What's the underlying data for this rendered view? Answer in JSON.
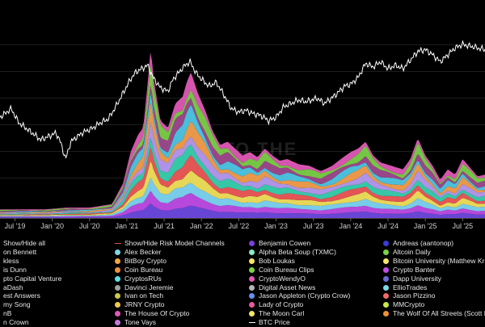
{
  "chart_data": {
    "type": "area",
    "watermark": "INTO THE",
    "x_ticks": [
      "Jul '19",
      "Jan '20",
      "Jul '20",
      "Jan '21",
      "Jul '21",
      "Jan '22",
      "Jul '22",
      "Jan '23",
      "Jul '23",
      "Jan '24",
      "Jul '24",
      "Jan '25",
      "Jul '25"
    ],
    "x_range": [
      2019.3,
      2025.8
    ],
    "y_range_views": [
      0,
      1
    ],
    "btc_price_norm": [
      [
        2019.3,
        0.58
      ],
      [
        2019.45,
        0.63
      ],
      [
        2019.55,
        0.55
      ],
      [
        2019.7,
        0.5
      ],
      [
        2019.85,
        0.45
      ],
      [
        2019.95,
        0.47
      ],
      [
        2020.05,
        0.49
      ],
      [
        2020.1,
        0.45
      ],
      [
        2020.18,
        0.34
      ],
      [
        2020.25,
        0.44
      ],
      [
        2020.4,
        0.49
      ],
      [
        2020.55,
        0.52
      ],
      [
        2020.65,
        0.55
      ],
      [
        2020.75,
        0.57
      ],
      [
        2020.85,
        0.64
      ],
      [
        2020.95,
        0.72
      ],
      [
        2021.05,
        0.8
      ],
      [
        2021.12,
        0.84
      ],
      [
        2021.2,
        0.86
      ],
      [
        2021.28,
        0.88
      ],
      [
        2021.35,
        0.81
      ],
      [
        2021.45,
        0.75
      ],
      [
        2021.55,
        0.73
      ],
      [
        2021.62,
        0.8
      ],
      [
        2021.7,
        0.84
      ],
      [
        2021.78,
        0.88
      ],
      [
        2021.85,
        0.9
      ],
      [
        2021.92,
        0.84
      ],
      [
        2022.0,
        0.8
      ],
      [
        2022.1,
        0.76
      ],
      [
        2022.2,
        0.78
      ],
      [
        2022.3,
        0.71
      ],
      [
        2022.4,
        0.63
      ],
      [
        2022.5,
        0.61
      ],
      [
        2022.6,
        0.62
      ],
      [
        2022.7,
        0.6
      ],
      [
        2022.8,
        0.59
      ],
      [
        2022.9,
        0.56
      ],
      [
        2023.0,
        0.58
      ],
      [
        2023.1,
        0.64
      ],
      [
        2023.2,
        0.66
      ],
      [
        2023.3,
        0.68
      ],
      [
        2023.4,
        0.67
      ],
      [
        2023.55,
        0.69
      ],
      [
        2023.65,
        0.66
      ],
      [
        2023.8,
        0.71
      ],
      [
        2023.92,
        0.76
      ],
      [
        2024.0,
        0.77
      ],
      [
        2024.1,
        0.81
      ],
      [
        2024.2,
        0.89
      ],
      [
        2024.3,
        0.87
      ],
      [
        2024.4,
        0.9
      ],
      [
        2024.5,
        0.86
      ],
      [
        2024.6,
        0.88
      ],
      [
        2024.7,
        0.86
      ],
      [
        2024.8,
        0.91
      ],
      [
        2024.9,
        0.96
      ],
      [
        2025.0,
        0.97
      ],
      [
        2025.1,
        0.94
      ],
      [
        2025.2,
        0.9
      ],
      [
        2025.3,
        0.94
      ],
      [
        2025.4,
        0.98
      ],
      [
        2025.5,
        1.0
      ],
      [
        2025.6,
        0.99
      ],
      [
        2025.7,
        0.98
      ],
      [
        2025.8,
        0.97
      ]
    ],
    "views_total_norm": [
      [
        2019.3,
        0.05
      ],
      [
        2019.6,
        0.05
      ],
      [
        2019.9,
        0.05
      ],
      [
        2020.2,
        0.06
      ],
      [
        2020.5,
        0.06
      ],
      [
        2020.8,
        0.08
      ],
      [
        2020.95,
        0.2
      ],
      [
        2021.05,
        0.38
      ],
      [
        2021.15,
        0.48
      ],
      [
        2021.22,
        0.52
      ],
      [
        2021.28,
        0.78
      ],
      [
        2021.32,
        0.98
      ],
      [
        2021.36,
        0.8
      ],
      [
        2021.45,
        0.56
      ],
      [
        2021.55,
        0.52
      ],
      [
        2021.65,
        0.66
      ],
      [
        2021.75,
        0.7
      ],
      [
        2021.8,
        0.78
      ],
      [
        2021.86,
        0.84
      ],
      [
        2021.95,
        0.72
      ],
      [
        2022.05,
        0.62
      ],
      [
        2022.15,
        0.5
      ],
      [
        2022.25,
        0.42
      ],
      [
        2022.35,
        0.44
      ],
      [
        2022.45,
        0.4
      ],
      [
        2022.55,
        0.36
      ],
      [
        2022.65,
        0.38
      ],
      [
        2022.75,
        0.35
      ],
      [
        2022.85,
        0.4
      ],
      [
        2022.95,
        0.36
      ],
      [
        2023.05,
        0.33
      ],
      [
        2023.15,
        0.34
      ],
      [
        2023.3,
        0.31
      ],
      [
        2023.45,
        0.3
      ],
      [
        2023.6,
        0.27
      ],
      [
        2023.75,
        0.3
      ],
      [
        2023.9,
        0.35
      ],
      [
        2024.0,
        0.38
      ],
      [
        2024.1,
        0.4
      ],
      [
        2024.2,
        0.44
      ],
      [
        2024.3,
        0.36
      ],
      [
        2024.4,
        0.32
      ],
      [
        2024.55,
        0.3
      ],
      [
        2024.7,
        0.28
      ],
      [
        2024.8,
        0.34
      ],
      [
        2024.9,
        0.46
      ],
      [
        2025.0,
        0.36
      ],
      [
        2025.1,
        0.3
      ],
      [
        2025.2,
        0.22
      ],
      [
        2025.3,
        0.28
      ],
      [
        2025.4,
        0.25
      ],
      [
        2025.5,
        0.34
      ],
      [
        2025.6,
        0.29
      ],
      [
        2025.7,
        0.24
      ],
      [
        2025.8,
        0.25
      ]
    ],
    "layer_colors": [
      "#e05ab7",
      "#7bd148",
      "#a14a8f",
      "#4fc8e8",
      "#f6a04d",
      "#b79bf2",
      "#39d2b0",
      "#f05a5a",
      "#f3e35c",
      "#7ed6f5",
      "#c04de8",
      "#6e4ae0"
    ]
  },
  "legend": [
    {
      "label": "Show/Hide all",
      "color": "#ffffff",
      "marker": "none"
    },
    {
      "label": "on Bennett",
      "color": "#c04de8",
      "marker": "dot"
    },
    {
      "label": "kless",
      "color": "#5bd6ce",
      "marker": "dot"
    },
    {
      "label": "is Dunn",
      "color": "#f06a6a",
      "marker": "dot"
    },
    {
      "label": "pto Capital Venture",
      "color": "#3b5de0",
      "marker": "dot"
    },
    {
      "label": "aDash",
      "color": "#f2c94c",
      "marker": "dot"
    },
    {
      "label": "est Answers",
      "color": "#e06bd0",
      "marker": "dot"
    },
    {
      "label": "my Song",
      "color": "#f0913a",
      "marker": "dot"
    },
    {
      "label": "nB",
      "color": "#8e44ad",
      "marker": "dot"
    },
    {
      "label": "n Crown",
      "color": "#e0e0e0",
      "marker": "dot"
    },
    {
      "label": "Show/Hide Risk Model Channels",
      "color": "#e05555",
      "marker": "line"
    },
    {
      "label": "Alex Becker",
      "color": "#7fd8e8",
      "marker": "dot"
    },
    {
      "label": "BitBoy Crypto",
      "color": "#f5a63b",
      "marker": "dot"
    },
    {
      "label": "Coin Bureau",
      "color": "#f0913a",
      "marker": "dot"
    },
    {
      "label": "CryptosRUs",
      "color": "#5be0e8",
      "marker": "dot"
    },
    {
      "label": "Davinci Jeremie",
      "color": "#a0a0a0",
      "marker": "dot"
    },
    {
      "label": "Ivan on Tech",
      "color": "#c8c84a",
      "marker": "dot"
    },
    {
      "label": "JRNY Crypto",
      "color": "#f0c84c",
      "marker": "dot"
    },
    {
      "label": "The House Of Crypto",
      "color": "#e05ab7",
      "marker": "dot"
    },
    {
      "label": "Tone Vays",
      "color": "#c478d8",
      "marker": "dot"
    },
    {
      "label": "Benjamin Cowen",
      "color": "#7b3fe0",
      "marker": "dot"
    },
    {
      "label": "Alpha Beta Soup (TXMC)",
      "color": "#8be8c8",
      "marker": "dot"
    },
    {
      "label": "Bob Loukas",
      "color": "#f5e56b",
      "marker": "dot"
    },
    {
      "label": "Coin Bureau Clips",
      "color": "#7bd148",
      "marker": "dot"
    },
    {
      "label": "CryptoWendyO",
      "color": "#e05ab7",
      "marker": "dot"
    },
    {
      "label": "Digital Asset News",
      "color": "#b5b5b5",
      "marker": "dot"
    },
    {
      "label": "Jason Appleton (Crypto Crow)",
      "color": "#6b8ff0",
      "marker": "dot"
    },
    {
      "label": "Lady of Crypto",
      "color": "#e85a9a",
      "marker": "dot"
    },
    {
      "label": "The Moon Carl",
      "color": "#f5e56b",
      "marker": "dot"
    },
    {
      "label": "BTC Price",
      "color": "#ffffff",
      "marker": "line"
    },
    {
      "label": "Andreas (aantonop)",
      "color": "#3b3bd8",
      "marker": "dot"
    },
    {
      "label": "Altcoin Daily",
      "color": "#7bd148",
      "marker": "dot"
    },
    {
      "label": "Bitcoin University (Matthew Kr",
      "color": "#f5e56b",
      "marker": "dot"
    },
    {
      "label": "Crypto Banter",
      "color": "#c04de8",
      "marker": "dot"
    },
    {
      "label": "Dapp University",
      "color": "#6b6bd8",
      "marker": "dot"
    },
    {
      "label": "EllioTrades",
      "color": "#7fd8e8",
      "marker": "dot"
    },
    {
      "label": "Jason Pizzino",
      "color": "#f06a6a",
      "marker": "dot"
    },
    {
      "label": "MMCrypto",
      "color": "#c8e84a",
      "marker": "dot"
    },
    {
      "label": "The Wolf Of All Streets (Scott M",
      "color": "#f0913a",
      "marker": "dot"
    }
  ]
}
